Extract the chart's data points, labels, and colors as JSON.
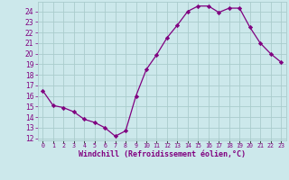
{
  "x": [
    0,
    1,
    2,
    3,
    4,
    5,
    6,
    7,
    8,
    9,
    10,
    11,
    12,
    13,
    14,
    15,
    16,
    17,
    18,
    19,
    20,
    21,
    22,
    23
  ],
  "y": [
    16.5,
    15.1,
    14.9,
    14.5,
    13.8,
    13.5,
    13.0,
    12.2,
    12.7,
    16.0,
    18.5,
    19.9,
    21.5,
    22.7,
    24.0,
    24.5,
    24.5,
    23.9,
    24.3,
    24.3,
    22.5,
    21.0,
    20.0,
    19.2
  ],
  "line_color": "#800080",
  "marker": "D",
  "marker_size": 2.2,
  "bg_color": "#cce8eb",
  "grid_color": "#aacccc",
  "xlabel": "Windchill (Refroidissement éolien,°C)",
  "ylabel_ticks": [
    12,
    13,
    14,
    15,
    16,
    17,
    18,
    19,
    20,
    21,
    22,
    23,
    24
  ],
  "xlim": [
    -0.5,
    23.5
  ],
  "ylim": [
    11.8,
    24.9
  ],
  "xtick_labels": [
    "0",
    "1",
    "2",
    "3",
    "4",
    "5",
    "6",
    "7",
    "8",
    "9",
    "10",
    "11",
    "12",
    "13",
    "14",
    "15",
    "16",
    "17",
    "18",
    "19",
    "20",
    "21",
    "22",
    "23"
  ],
  "font_color": "#800080",
  "xlabel_fontsize": 6.0,
  "ytick_fontsize": 5.5,
  "xtick_fontsize": 4.8
}
